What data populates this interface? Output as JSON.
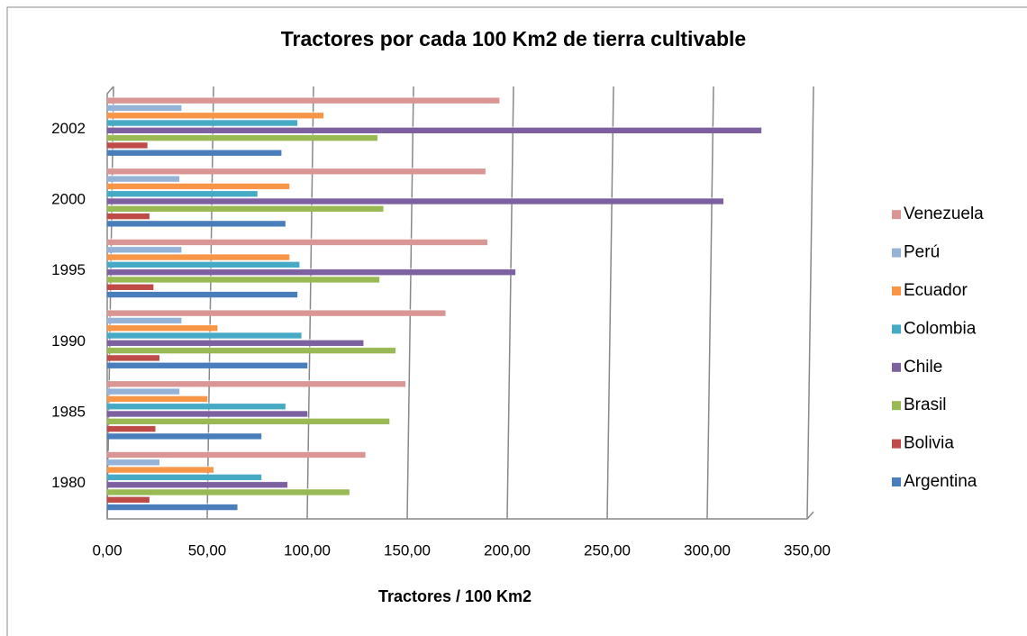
{
  "chart_data": {
    "type": "hbar",
    "title": "Tractores por cada 100 Km2 de tierra cultivable",
    "x_label": "Tractores / 100 Km2",
    "categories": [
      "1980",
      "1985",
      "1990",
      "1995",
      "2000",
      "2002"
    ],
    "series": [
      {
        "name": "Argentina",
        "color": "#4a7ebb",
        "values": [
          65,
          77,
          100,
          95,
          89,
          87
        ]
      },
      {
        "name": "Bolivia",
        "color": "#be4b48",
        "values": [
          21,
          24,
          26,
          23,
          21,
          20
        ]
      },
      {
        "name": "Brasil",
        "color": "#98b954",
        "values": [
          121,
          141,
          144,
          136,
          138,
          135
        ]
      },
      {
        "name": "Chile",
        "color": "#7d60a0",
        "values": [
          90,
          100,
          128,
          204,
          308,
          327
        ]
      },
      {
        "name": "Colombia",
        "color": "#46aac5",
        "values": [
          77,
          89,
          97,
          96,
          75,
          95
        ]
      },
      {
        "name": "Ecuador",
        "color": "#f79646",
        "values": [
          53,
          50,
          55,
          91,
          91,
          108
        ]
      },
      {
        "name": "Perú",
        "color": "#95b3d7",
        "values": [
          26,
          36,
          37,
          37,
          36,
          37
        ]
      },
      {
        "name": "Venezuela",
        "color": "#d99694",
        "values": [
          129,
          149,
          169,
          190,
          189,
          196
        ]
      }
    ],
    "xlim": [
      0,
      350
    ],
    "xticks": [
      {
        "value": 0,
        "label": "0,00"
      },
      {
        "value": 50,
        "label": "50,00"
      },
      {
        "value": 100,
        "label": "100,00"
      },
      {
        "value": 150,
        "label": "150,00"
      },
      {
        "value": 200,
        "label": "200,00"
      },
      {
        "value": 250,
        "label": "250,00"
      },
      {
        "value": 300,
        "label": "300,00"
      },
      {
        "value": 350,
        "label": "350,00"
      }
    ],
    "grid": true,
    "legend": "right"
  }
}
